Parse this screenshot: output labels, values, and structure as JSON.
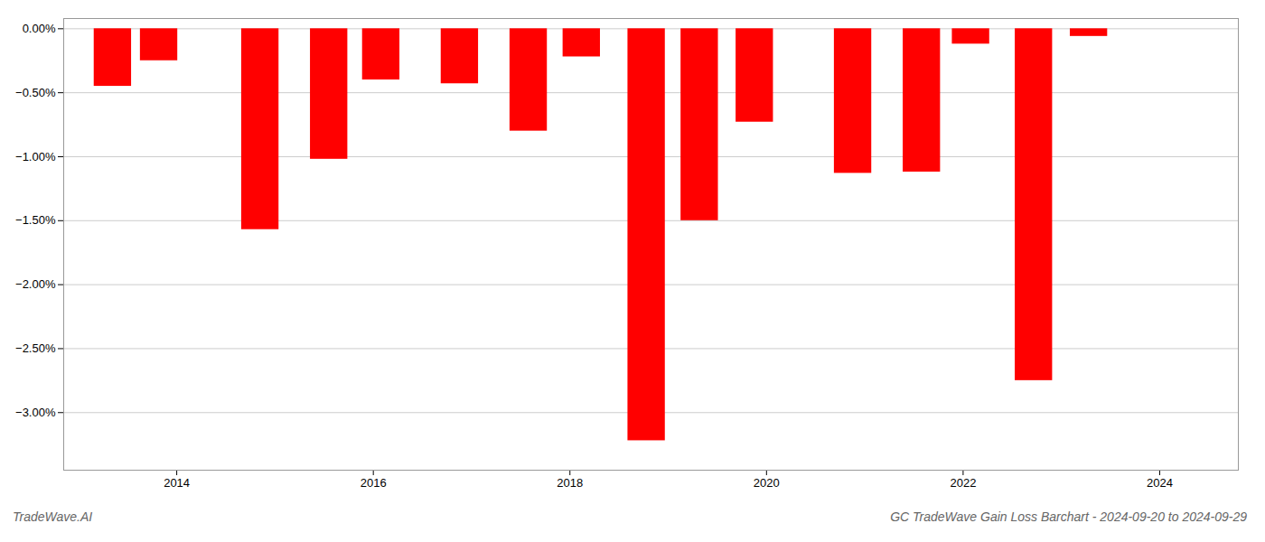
{
  "chart_data": {
    "type": "bar",
    "title": "GC TradeWave Gain Loss Barchart - 2024-09-20 to 2024-09-29",
    "annotations": [
      "TradeWave.AI"
    ],
    "x": [
      2013.35,
      2013.82,
      2014.85,
      2015.55,
      2016.08,
      2016.88,
      2017.58,
      2018.12,
      2018.78,
      2019.32,
      2019.88,
      2020.88,
      2021.58,
      2022.08,
      2022.72,
      2023.28
    ],
    "values": [
      -0.45,
      -0.25,
      -1.57,
      -1.02,
      -0.4,
      -0.43,
      -0.8,
      -0.22,
      -3.22,
      -1.5,
      -0.73,
      -1.13,
      -1.12,
      -0.12,
      -2.75,
      -0.06
    ],
    "color": "#ff0000",
    "xlim": [
      2012.85,
      2024.8
    ],
    "xticks": [
      2014,
      2016,
      2018,
      2020,
      2022,
      2024
    ],
    "ylim": [
      -3.45,
      0.08
    ],
    "yticks": [
      {
        "value": 0.0,
        "label": "0.00%"
      },
      {
        "value": -0.5,
        "label": "−0.50%"
      },
      {
        "value": -1.0,
        "label": "−1.00%"
      },
      {
        "value": -1.5,
        "label": "−1.50%"
      },
      {
        "value": -2.0,
        "label": "−2.00%"
      },
      {
        "value": -2.5,
        "label": "−2.50%"
      },
      {
        "value": -3.0,
        "label": "−3.00%"
      }
    ],
    "grid": true
  }
}
